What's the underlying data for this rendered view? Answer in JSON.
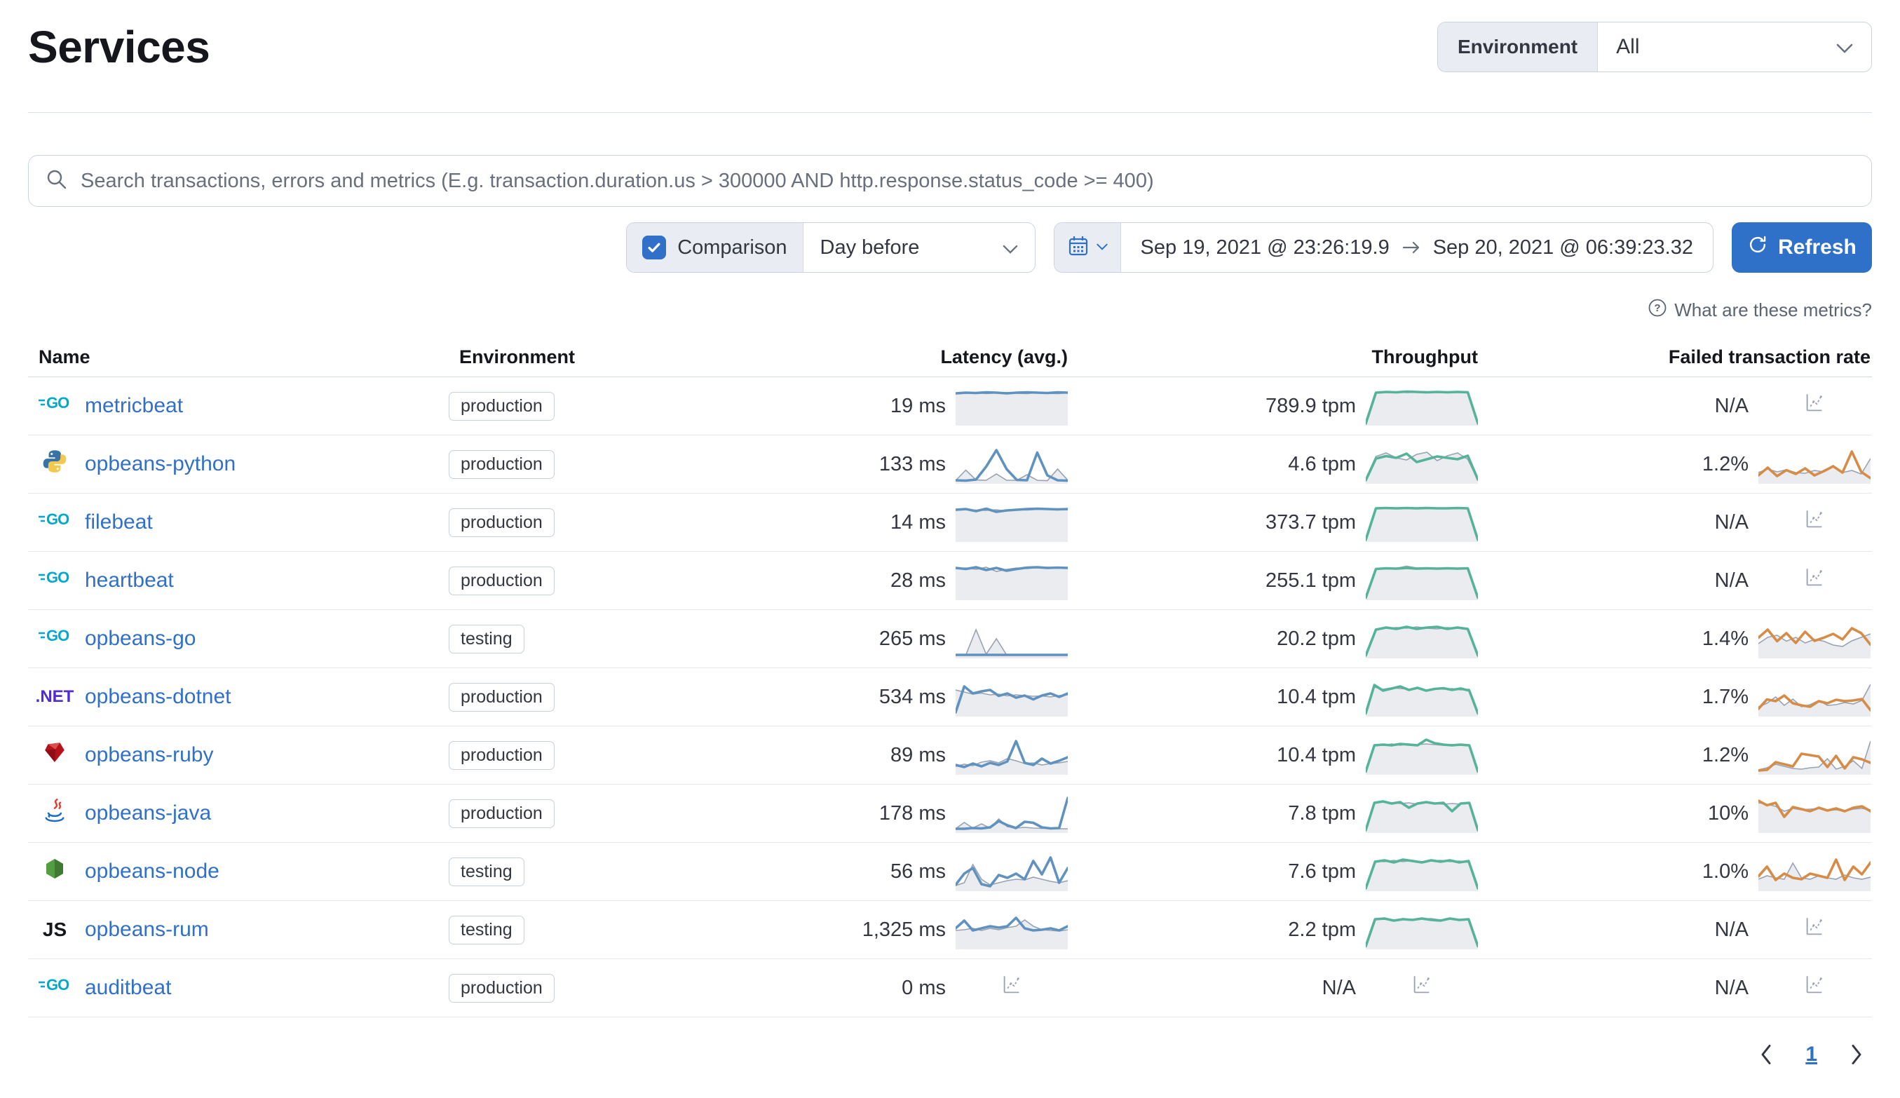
{
  "page": {
    "title": "Services"
  },
  "environment_filter": {
    "label": "Environment",
    "value": "All"
  },
  "search": {
    "placeholder": "Search transactions, errors and metrics (E.g. transaction.duration.us > 300000 AND http.response.status_code >= 400)"
  },
  "controls": {
    "comparison_label": "Comparison",
    "comparison_checked": true,
    "comparison_value": "Day before",
    "date_start": "Sep 19, 2021 @ 23:26:19.9",
    "date_end": "Sep 20, 2021 @ 06:39:23.32",
    "refresh_label": "Refresh"
  },
  "metrics_help": {
    "label": "What are these metrics?"
  },
  "table": {
    "columns": [
      "Name",
      "Environment",
      "Latency (avg.)",
      "Throughput",
      "Failed transaction rate"
    ],
    "rows": [
      {
        "name": "metricbeat",
        "agent": "go",
        "environment": "production",
        "latency": "19 ms",
        "throughput": "789.9 tpm",
        "failed_rate": "N/A",
        "latency_spark": {
          "current": [
            88,
            90,
            89,
            91,
            90,
            88,
            90,
            91,
            90,
            89,
            91,
            90
          ],
          "comparison": [
            86,
            88,
            90,
            87,
            89,
            90,
            88,
            87,
            90,
            88,
            87,
            89
          ]
        },
        "throughput_spark": {
          "current": [
            2,
            90,
            92,
            91,
            93,
            92,
            91,
            92,
            91,
            92,
            91,
            2
          ],
          "comparison": [
            2,
            88,
            91,
            92,
            90,
            91,
            92,
            91,
            90,
            91,
            90,
            2
          ]
        },
        "failed_spark": null
      },
      {
        "name": "opbeans-python",
        "agent": "python",
        "environment": "production",
        "latency": "133 ms",
        "throughput": "4.6 tpm",
        "failed_rate": "1.2%",
        "latency_spark": {
          "current": [
            6,
            5,
            8,
            45,
            92,
            38,
            7,
            6,
            85,
            20,
            6,
            5
          ],
          "comparison": [
            5,
            35,
            7,
            6,
            24,
            6,
            6,
            22,
            6,
            5,
            38,
            6
          ]
        },
        "throughput_spark": {
          "current": [
            6,
            68,
            75,
            70,
            82,
            58,
            66,
            74,
            70,
            66,
            76,
            8
          ],
          "comparison": [
            10,
            74,
            84,
            70,
            64,
            80,
            86,
            62,
            76,
            84,
            66,
            6
          ]
        },
        "failed_spark": {
          "current": [
            20,
            42,
            18,
            35,
            24,
            40,
            20,
            32,
            46,
            28,
            88,
            30,
            12
          ],
          "comparison": [
            28,
            38,
            30,
            36,
            28,
            26,
            34,
            30,
            48,
            28,
            34,
            24,
            68
          ]
        }
      },
      {
        "name": "filebeat",
        "agent": "go",
        "environment": "production",
        "latency": "14 ms",
        "throughput": "373.7 tpm",
        "failed_rate": "N/A",
        "latency_spark": {
          "current": [
            88,
            90,
            84,
            91,
            82,
            86,
            88,
            90,
            91,
            90,
            89,
            90
          ],
          "comparison": [
            86,
            88,
            87,
            86,
            88,
            84,
            88,
            87,
            89,
            90,
            88,
            88
          ]
        },
        "throughput_spark": {
          "current": [
            2,
            92,
            93,
            92,
            93,
            92,
            93,
            92,
            92,
            93,
            92,
            2
          ],
          "comparison": [
            2,
            90,
            92,
            91,
            92,
            93,
            92,
            91,
            92,
            91,
            92,
            2
          ]
        },
        "failed_spark": null
      },
      {
        "name": "heartbeat",
        "agent": "go",
        "environment": "production",
        "latency": "28 ms",
        "throughput": "255.1 tpm",
        "failed_rate": "N/A",
        "latency_spark": {
          "current": [
            88,
            85,
            90,
            82,
            88,
            80,
            85,
            89,
            90,
            88,
            89,
            88
          ],
          "comparison": [
            86,
            88,
            84,
            90,
            78,
            84,
            88,
            86,
            89,
            90,
            88,
            87
          ]
        },
        "throughput_spark": {
          "current": [
            3,
            85,
            87,
            86,
            88,
            86,
            87,
            86,
            87,
            86,
            87,
            3
          ],
          "comparison": [
            3,
            84,
            86,
            87,
            93,
            88,
            86,
            87,
            86,
            85,
            86,
            3
          ]
        },
        "failed_spark": null
      },
      {
        "name": "opbeans-go",
        "agent": "go",
        "environment": "testing",
        "latency": "265 ms",
        "throughput": "20.2 tpm",
        "failed_rate": "1.4%",
        "latency_spark": {
          "current": [
            6,
            6,
            6,
            6,
            6,
            6,
            6,
            6,
            6,
            6,
            6,
            6
          ],
          "comparison": [
            5,
            5,
            78,
            8,
            52,
            6,
            5,
            5,
            5,
            5,
            5,
            5
          ]
        },
        "throughput_spark": {
          "current": [
            4,
            78,
            84,
            80,
            86,
            80,
            84,
            86,
            80,
            84,
            80,
            4
          ],
          "comparison": [
            4,
            80,
            82,
            84,
            82,
            86,
            82,
            80,
            84,
            82,
            78,
            4
          ]
        },
        "failed_spark": {
          "current": [
            55,
            78,
            45,
            68,
            40,
            72,
            46,
            55,
            66,
            50,
            82,
            68,
            35
          ],
          "comparison": [
            38,
            56,
            62,
            45,
            56,
            40,
            50,
            45,
            34,
            30,
            46,
            56,
            66
          ]
        }
      },
      {
        "name": "opbeans-dotnet",
        "agent": "dotnet",
        "environment": "production",
        "latency": "534 ms",
        "throughput": "10.4 tpm",
        "failed_rate": "1.7%",
        "latency_spark": {
          "current": [
            8,
            82,
            62,
            68,
            72,
            55,
            62,
            50,
            56,
            45,
            56,
            62,
            52,
            62
          ],
          "comparison": [
            72,
            66,
            60,
            63,
            58,
            60,
            55,
            58,
            56,
            54,
            55,
            52,
            56,
            58
          ]
        },
        "throughput_spark": {
          "current": [
            5,
            86,
            70,
            76,
            82,
            72,
            78,
            70,
            75,
            77,
            72,
            76,
            70,
            5
          ],
          "comparison": [
            5,
            80,
            74,
            78,
            76,
            74,
            76,
            72,
            76,
            74,
            76,
            72,
            74,
            5
          ]
        },
        "failed_spark": {
          "current": [
            18,
            45,
            40,
            56,
            34,
            28,
            24,
            40,
            34,
            44,
            40,
            42,
            46,
            14
          ],
          "comparison": [
            24,
            34,
            52,
            28,
            46,
            24,
            30,
            42,
            28,
            30,
            36,
            32,
            42,
            88
          ]
        }
      },
      {
        "name": "opbeans-ruby",
        "agent": "ruby",
        "environment": "production",
        "latency": "89 ms",
        "throughput": "10.4 tpm",
        "failed_rate": "1.2%",
        "latency_spark": {
          "current": [
            24,
            18,
            28,
            20,
            30,
            24,
            34,
            92,
            30,
            24,
            42,
            28,
            36,
            46
          ],
          "comparison": [
            20,
            26,
            22,
            32,
            36,
            30,
            42,
            36,
            28,
            30,
            24,
            28,
            30,
            34
          ]
        },
        "throughput_spark": {
          "current": [
            5,
            80,
            82,
            80,
            84,
            82,
            80,
            96,
            86,
            82,
            80,
            82,
            80,
            5
          ],
          "comparison": [
            5,
            82,
            80,
            84,
            80,
            84,
            82,
            84,
            82,
            80,
            82,
            80,
            78,
            5
          ]
        },
        "failed_spark": {
          "current": [
            8,
            10,
            32,
            26,
            20,
            56,
            52,
            48,
            18,
            50,
            14,
            46,
            40,
            30
          ],
          "comparison": [
            10,
            16,
            26,
            20,
            14,
            12,
            16,
            18,
            42,
            12,
            20,
            36,
            14,
            92
          ]
        }
      },
      {
        "name": "opbeans-java",
        "agent": "java",
        "environment": "production",
        "latency": "178 ms",
        "throughput": "7.8 tpm",
        "failed_rate": "10%",
        "latency_spark": {
          "current": [
            8,
            8,
            10,
            9,
            12,
            30,
            18,
            10,
            28,
            25,
            12,
            9,
            10,
            96
          ],
          "comparison": [
            8,
            26,
            10,
            22,
            10,
            36,
            14,
            10,
            12,
            10,
            9,
            10,
            8,
            8
          ]
        },
        "throughput_spark": {
          "current": [
            4,
            82,
            86,
            80,
            84,
            68,
            80,
            84,
            80,
            82,
            58,
            80,
            82,
            4
          ],
          "comparison": [
            4,
            80,
            84,
            82,
            80,
            82,
            78,
            82,
            80,
            78,
            80,
            78,
            80,
            4
          ]
        },
        "failed_spark": {
          "current": [
            88,
            75,
            82,
            42,
            70,
            64,
            58,
            68,
            60,
            66,
            58,
            68,
            72,
            58
          ],
          "comparison": [
            82,
            78,
            72,
            58,
            66,
            62,
            64,
            66,
            60,
            62,
            58,
            64,
            66,
            62
          ]
        }
      },
      {
        "name": "opbeans-node",
        "agent": "node",
        "environment": "testing",
        "latency": "56 ms",
        "throughput": "7.6 tpm",
        "failed_rate": "1.0%",
        "latency_spark": {
          "current": [
            14,
            46,
            62,
            16,
            10,
            42,
            34,
            46,
            30,
            82,
            44,
            92,
            20,
            62
          ],
          "comparison": [
            12,
            20,
            72,
            30,
            14,
            20,
            26,
            30,
            28,
            36,
            30,
            24,
            20,
            26
          ]
        },
        "throughput_spark": {
          "current": [
            4,
            80,
            84,
            78,
            86,
            82,
            78,
            84,
            80,
            84,
            78,
            82,
            4
          ],
          "comparison": [
            4,
            82,
            80,
            84,
            80,
            84,
            80,
            82,
            84,
            80,
            82,
            78,
            4
          ]
        },
        "failed_spark": {
          "current": [
            38,
            66,
            28,
            46,
            34,
            30,
            46,
            40,
            34,
            86,
            28,
            66,
            44,
            78
          ],
          "comparison": [
            30,
            40,
            34,
            30,
            76,
            34,
            30,
            40,
            34,
            30,
            42,
            34,
            30,
            36
          ]
        }
      },
      {
        "name": "opbeans-rum",
        "agent": "js",
        "environment": "testing",
        "latency": "1,325 ms",
        "throughput": "2.2 tpm",
        "failed_rate": "N/A",
        "latency_spark": {
          "current": [
            56,
            78,
            50,
            56,
            62,
            58,
            62,
            86,
            56,
            50,
            52,
            56,
            50,
            62
          ],
          "comparison": [
            50,
            52,
            56,
            50,
            56,
            52,
            58,
            62,
            80,
            62,
            52,
            50,
            48,
            52
          ]
        },
        "throughput_spark": {
          "current": [
            5,
            82,
            84,
            78,
            82,
            80,
            84,
            80,
            78,
            84,
            80,
            82,
            5
          ],
          "comparison": [
            5,
            80,
            82,
            80,
            84,
            80,
            82,
            84,
            80,
            82,
            78,
            80,
            5
          ]
        },
        "failed_spark": null
      },
      {
        "name": "auditbeat",
        "agent": "go",
        "environment": "production",
        "latency": "0 ms",
        "throughput": "N/A",
        "failed_rate": "N/A",
        "latency_spark": null,
        "throughput_spark": null,
        "failed_spark": null
      }
    ]
  },
  "pagination": {
    "current": "1"
  },
  "colors": {
    "accent_blue": "#2f70c8",
    "link_blue": "#3170c9",
    "latency_spark": "#6092C0",
    "throughput_spark": "#54B399",
    "failed_spark": "#D68C46",
    "comparison_gray": "#98A2B3"
  }
}
